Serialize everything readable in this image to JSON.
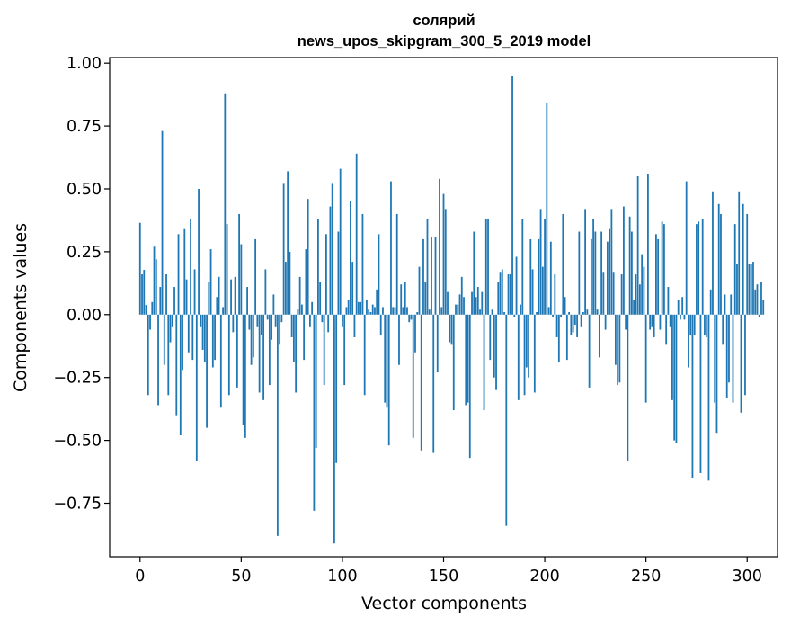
{
  "chart_data": {
    "type": "bar",
    "title": "солярий",
    "subtitle": "news_upos_skipgram_300_5_2019 model",
    "xlabel": "Vector components",
    "ylabel": "Components values",
    "xlim": [
      -15,
      315
    ],
    "ylim": [
      -0.9628,
      1.0221
    ],
    "xticks": [
      0,
      50,
      100,
      150,
      200,
      250,
      300
    ],
    "yticks": [
      -0.75,
      -0.5,
      -0.25,
      0.0,
      0.25,
      0.5,
      0.75,
      1.0
    ],
    "ytick_labels": [
      "−0.75",
      "−0.50",
      "−0.25",
      "0.00",
      "0.25",
      "0.50",
      "0.75",
      "1.00"
    ],
    "bar_color": "#1f77b4",
    "grid": false,
    "legend": "none",
    "values": [
      0.365,
      0.16,
      0.178,
      0.038,
      -0.32,
      -0.06,
      0.05,
      0.27,
      0.22,
      -0.36,
      0.11,
      0.73,
      -0.2,
      0.16,
      -0.32,
      -0.11,
      -0.05,
      0.11,
      -0.4,
      0.32,
      -0.48,
      -0.22,
      0.34,
      0.14,
      -0.15,
      0.38,
      -0.18,
      0.18,
      -0.58,
      0.5,
      -0.05,
      -0.14,
      -0.19,
      -0.45,
      0.13,
      0.26,
      -0.21,
      -0.18,
      0.07,
      0.15,
      -0.37,
      0.03,
      0.88,
      0.36,
      -0.32,
      0.14,
      -0.07,
      0.15,
      -0.29,
      0.4,
      0.28,
      -0.44,
      -0.49,
      0.11,
      -0.06,
      -0.2,
      -0.17,
      0.3,
      -0.05,
      -0.31,
      -0.08,
      -0.34,
      0.18,
      -0.02,
      -0.28,
      -0.1,
      0.08,
      -0.05,
      -0.88,
      -0.12,
      -0.03,
      0.52,
      0.21,
      0.57,
      0.25,
      -0.09,
      -0.19,
      -0.31,
      0.02,
      0.15,
      0.04,
      -0.18,
      0.26,
      0.46,
      -0.05,
      0.05,
      -0.78,
      -0.53,
      0.38,
      0.13,
      -0.03,
      -0.28,
      0.32,
      -0.07,
      0.43,
      0.52,
      -0.91,
      -0.59,
      0.33,
      0.58,
      -0.05,
      -0.28,
      0.03,
      0.06,
      0.45,
      0.21,
      -0.09,
      0.64,
      0.05,
      0.05,
      0.4,
      -0.32,
      0.06,
      0.02,
      0.01,
      0.04,
      0.03,
      0.1,
      0.32,
      -0.08,
      0.03,
      -0.35,
      -0.37,
      -0.52,
      0.53,
      0.03,
      0.03,
      0.4,
      -0.2,
      0.12,
      0.03,
      0.13,
      0.03,
      -0.03,
      -0.02,
      -0.49,
      -0.15,
      0.01,
      0.19,
      -0.54,
      0.3,
      0.13,
      0.38,
      0.02,
      0.31,
      -0.55,
      0.31,
      -0.23,
      0.54,
      0.03,
      0.48,
      0.42,
      0.09,
      -0.11,
      -0.12,
      -0.38,
      0.04,
      0.04,
      0.08,
      0.15,
      0.07,
      -0.36,
      -0.35,
      -0.57,
      0.09,
      0.33,
      0.07,
      0.11,
      0.02,
      0.09,
      -0.38,
      0.38,
      0.38,
      -0.18,
      0.02,
      -0.25,
      -0.3,
      0.13,
      0.17,
      0.18,
      0.01,
      -0.84,
      0.16,
      0.16,
      0.95,
      -0.01,
      0.23,
      -0.34,
      0.04,
      0.38,
      -0.32,
      -0.21,
      -0.25,
      0.3,
      0.18,
      -0.31,
      0.01,
      0.3,
      0.42,
      0.19,
      0.38,
      0.84,
      0.03,
      0.29,
      -0.01,
      0.16,
      -0.09,
      -0.19,
      -0.01,
      0.4,
      0.07,
      -0.18,
      0.01,
      -0.08,
      -0.07,
      -0.04,
      -0.09,
      0.33,
      -0.05,
      0.01,
      0.42,
      0.02,
      -0.29,
      0.3,
      0.38,
      0.33,
      0.02,
      -0.17,
      0.33,
      0.17,
      -0.06,
      0.29,
      0.34,
      0.42,
      0.17,
      -0.2,
      -0.28,
      -0.27,
      0.16,
      0.43,
      -0.06,
      -0.58,
      0.39,
      0.33,
      0.06,
      0.16,
      0.55,
      0.12,
      0.24,
      0.19,
      -0.35,
      0.56,
      -0.06,
      -0.05,
      -0.09,
      0.32,
      0.3,
      -0.06,
      0.37,
      0.36,
      -0.12,
      0.11,
      -0.05,
      -0.34,
      -0.5,
      -0.51,
      0.06,
      -0.02,
      0.07,
      -0.02,
      0.53,
      -0.21,
      -0.08,
      -0.65,
      -0.08,
      0.36,
      0.37,
      -0.63,
      0.38,
      -0.08,
      -0.09,
      -0.66,
      0.1,
      0.49,
      -0.35,
      -0.47,
      0.44,
      0.4,
      -0.12,
      0.08,
      -0.33,
      -0.27,
      0.08,
      -0.35,
      0.36,
      0.2,
      0.49,
      -0.39,
      0.44,
      -0.32,
      0.4,
      0.2,
      0.2,
      0.21,
      0.1,
      0.12,
      -0.01,
      0.13,
      0.06
    ]
  }
}
